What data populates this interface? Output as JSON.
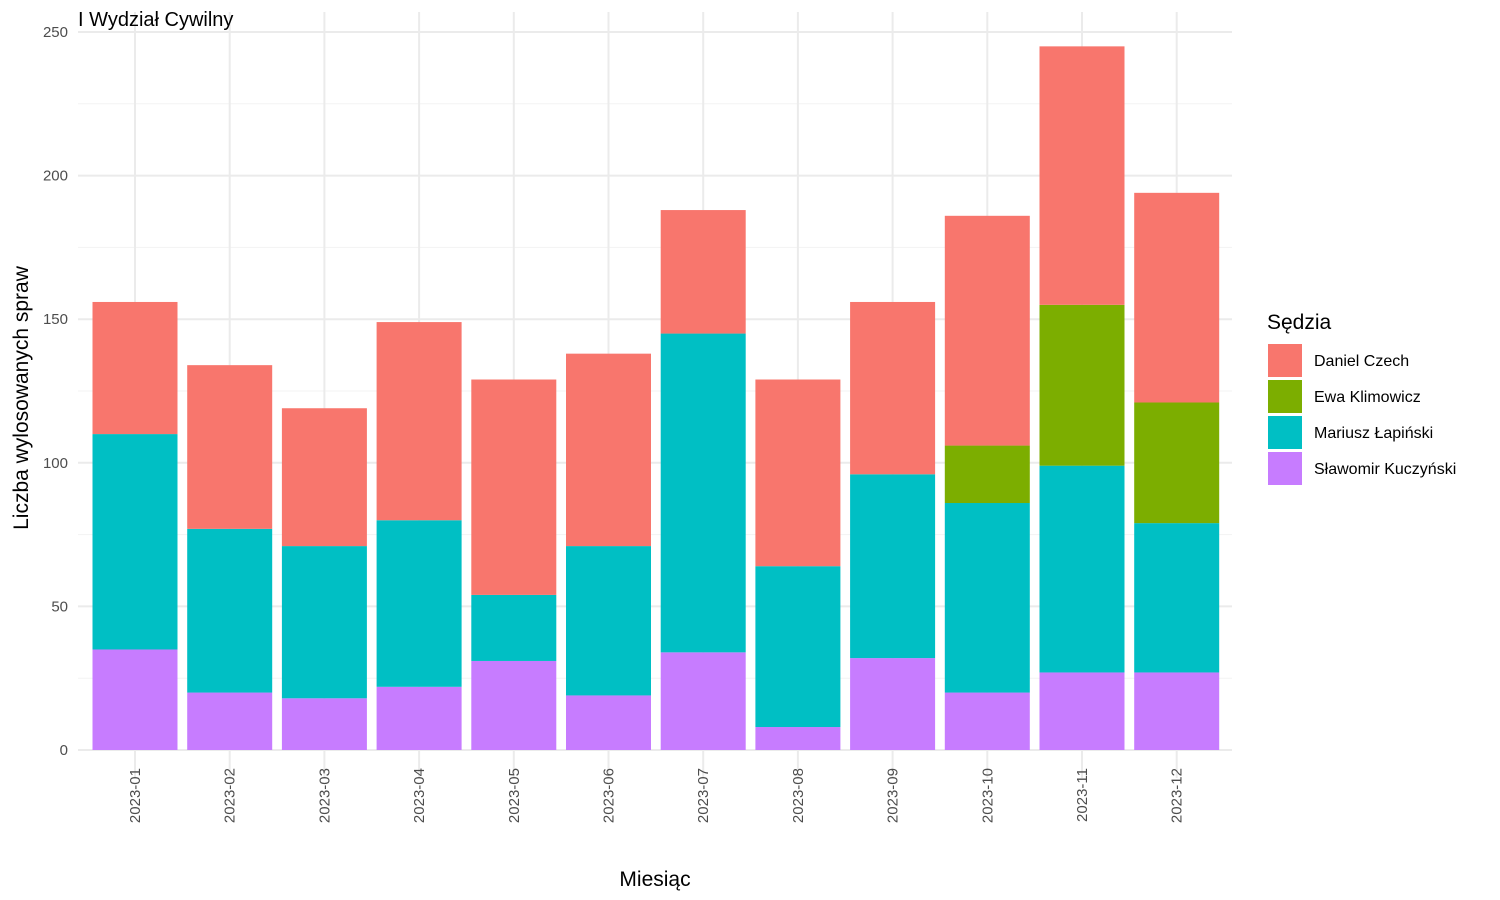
{
  "chart_data": {
    "type": "bar",
    "stacked": true,
    "title": "I Wydział Cywilny",
    "xlabel": "Miesiąc",
    "ylabel": "Liczba wylosowanych spraw",
    "ylim": [
      0,
      250
    ],
    "yticks": [
      0,
      50,
      100,
      150,
      200,
      250
    ],
    "grid": true,
    "legend": {
      "title": "Sędzia",
      "position": "right"
    },
    "categories": [
      "2023-01",
      "2023-02",
      "2023-03",
      "2023-04",
      "2023-05",
      "2023-06",
      "2023-07",
      "2023-08",
      "2023-09",
      "2023-10",
      "2023-11",
      "2023-12"
    ],
    "series": [
      {
        "name": "Daniel Czech",
        "color": "#F8766D",
        "values": [
          46,
          57,
          48,
          69,
          75,
          67,
          43,
          65,
          60,
          80,
          90,
          73
        ]
      },
      {
        "name": "Ewa Klimowicz",
        "color": "#7CAE00",
        "values": [
          0,
          0,
          0,
          0,
          0,
          0,
          0,
          0,
          0,
          20,
          56,
          42
        ]
      },
      {
        "name": "Mariusz Łapiński",
        "color": "#00BFC4",
        "values": [
          75,
          57,
          53,
          58,
          23,
          52,
          111,
          56,
          64,
          66,
          72,
          52
        ]
      },
      {
        "name": "Sławomir Kuczyński",
        "color": "#C77CFF",
        "values": [
          35,
          20,
          18,
          22,
          31,
          19,
          34,
          8,
          32,
          20,
          27,
          27
        ]
      }
    ]
  }
}
